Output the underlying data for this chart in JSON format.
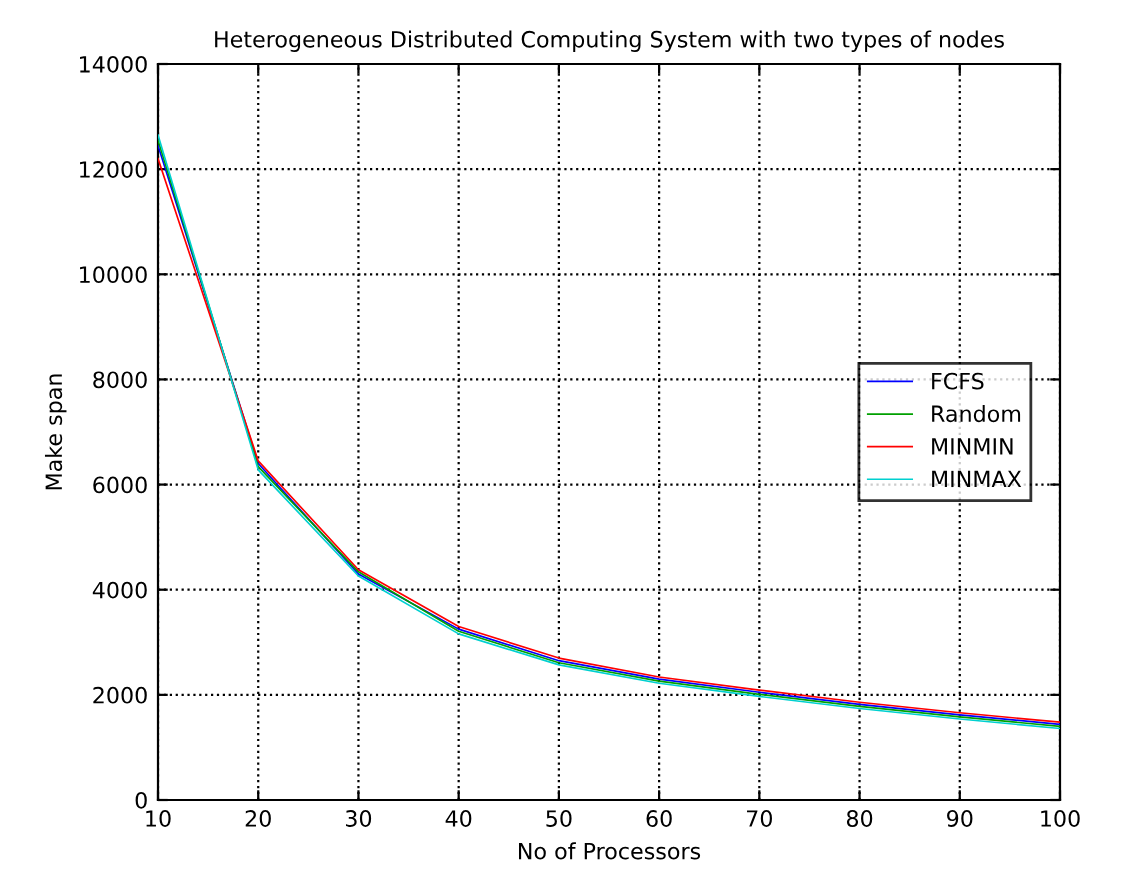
{
  "chart_data": {
    "type": "line",
    "title": "Heterogeneous Distributed Computing System with two types of nodes",
    "xlabel": "No of Processors",
    "ylabel": "Make span",
    "x": [
      10,
      20,
      30,
      40,
      50,
      60,
      70,
      80,
      90,
      100
    ],
    "series": [
      {
        "name": "FCFS",
        "color": "#0000ff",
        "values": [
          12450,
          6400,
          4300,
          3250,
          2650,
          2300,
          2050,
          1820,
          1620,
          1440
        ]
      },
      {
        "name": "Random",
        "color": "#00a000",
        "values": [
          12550,
          6340,
          4340,
          3210,
          2610,
          2260,
          2010,
          1780,
          1580,
          1400
        ]
      },
      {
        "name": "MINMIN",
        "color": "#ff0000",
        "values": [
          12200,
          6450,
          4380,
          3300,
          2700,
          2340,
          2090,
          1860,
          1660,
          1480
        ]
      },
      {
        "name": "MINMAX",
        "color": "#00d0d0",
        "values": [
          12650,
          6280,
          4260,
          3160,
          2570,
          2220,
          1970,
          1740,
          1540,
          1360
        ]
      }
    ],
    "xlim": [
      10,
      100
    ],
    "xticks": [
      10,
      20,
      30,
      40,
      50,
      60,
      70,
      80,
      90,
      100
    ],
    "ylim": [
      0,
      14000
    ],
    "yticks": [
      0,
      2000,
      4000,
      6000,
      8000,
      10000,
      12000,
      14000
    ],
    "grid": true,
    "legend": "right",
    "marker": "none",
    "line_style": "solid"
  }
}
